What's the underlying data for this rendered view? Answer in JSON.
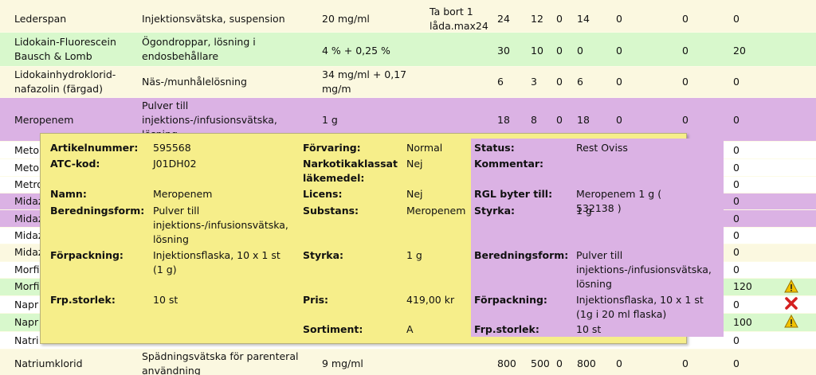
{
  "rows": [
    {
      "name": "Lederspan",
      "form": "Injektionsvätska, suspension",
      "strength": "20 mg/ml",
      "note": "Ta bort 1 låda.max24",
      "c1": "24",
      "c2": "12",
      "c3": "0",
      "c4": "14",
      "c5": "0",
      "c6": "0",
      "c7": "0"
    },
    {
      "name": "Lidokain-Fluorescein Bausch & Lomb",
      "form": "Ögondroppar, lösning i endosbehållare",
      "strength": "4 % + 0,25 %",
      "note": "",
      "c1": "30",
      "c2": "10",
      "c3": "0",
      "c4": "0",
      "c5": "0",
      "c6": "0",
      "c7": "20"
    },
    {
      "name": "Lidokainhydroklorid-nafazolin (färgad)",
      "form": "Näs-/munhålelösning",
      "strength": "34 mg/ml + 0,17 mg/m",
      "note": "",
      "c1": "6",
      "c2": "3",
      "c3": "0",
      "c4": "6",
      "c5": "0",
      "c6": "0",
      "c7": "0"
    },
    {
      "name": "Meropenem",
      "form": "Pulver till injektions-/infusionsvätska, lösning",
      "strength": "1 g",
      "note": "",
      "c1": "18",
      "c2": "8",
      "c3": "0",
      "c4": "18",
      "c5": "0",
      "c6": "0",
      "c7": "0"
    },
    {
      "name": "Meto",
      "last": "0"
    },
    {
      "name": "Meto",
      "last": "0"
    },
    {
      "name": "Metro",
      "last": "0"
    },
    {
      "name": "Midaz",
      "last": "0"
    },
    {
      "name": "Midaz",
      "last": "0"
    },
    {
      "name": "Midaz",
      "last": "0"
    },
    {
      "name": "Midaz",
      "last": "0"
    },
    {
      "name": "Morfi",
      "last": "0"
    },
    {
      "name": "Morfi",
      "last": "120"
    },
    {
      "name": "Napr",
      "last": "0"
    },
    {
      "name": "Napr",
      "last": "100"
    },
    {
      "name": "Natri",
      "last": "0"
    },
    {
      "name": "Natriumklorid",
      "form": "Spädningsvätska för parenteral användning",
      "strength": "9 mg/ml",
      "note": "",
      "c1": "800",
      "c2": "500",
      "c3": "0",
      "c4": "800",
      "c5": "0",
      "c6": "0",
      "c7": "0"
    }
  ],
  "popup": {
    "left": {
      "artikelnummer_label": "Artikelnummer:",
      "artikelnummer": "595568",
      "atc_label": "ATC-kod:",
      "atc": "J01DH02",
      "namn_label": "Namn:",
      "namn": "Meropenem",
      "beredning_label": "Beredningsform:",
      "beredning": "Pulver till injektions-/infusionsvätska, lösning",
      "forpackning_label": "Förpackning:",
      "forpackning": "Injektionsflaska, 10 x 1 st (1 g)",
      "frpstorlek_label": "Frp.storlek:",
      "frpstorlek": "10 st"
    },
    "middle": {
      "forvaring_label": "Förvaring:",
      "forvaring": "Normal",
      "narkotika_label": "Narkotikaklassat läkemedel:",
      "narkotika": "Nej",
      "licens_label": "Licens:",
      "licens": "Nej",
      "substans_label": "Substans:",
      "substans": "Meropenem",
      "styrka_label": "Styrka:",
      "styrka": "1 g",
      "pris_label": "Pris:",
      "pris": "419,00 kr",
      "sortiment_label": "Sortiment:",
      "sortiment": "A"
    },
    "right": {
      "status_label": "Status:",
      "status": "Rest Oviss",
      "kommentar_label": "Kommentar:",
      "kommentar": "",
      "rgl_label": "RGL byter till:",
      "rgl": "Meropenem 1 g ( 532138 )",
      "styrka_label": "Styrka:",
      "styrka": "1 g",
      "beredning_label": "Beredningsform:",
      "beredning": "Pulver till injektions-/infusionsvätska, lösning",
      "forpackning_label": "Förpackning:",
      "forpackning": "Injektionsflaska, 10 x 1 st (1g i 20 ml flaska)",
      "frpstorlek_label": "Frp.storlek:",
      "frpstorlek": "10 st"
    }
  },
  "icons": [
    "warning-icon",
    "error-x-icon",
    "warning-icon"
  ],
  "colors": {
    "cream": "#fbf8e0",
    "green": "#d8f8cc",
    "purple": "#dbb2e4",
    "popup": "#f6ee8a",
    "warning": "#e8b400",
    "error": "#d42020"
  }
}
